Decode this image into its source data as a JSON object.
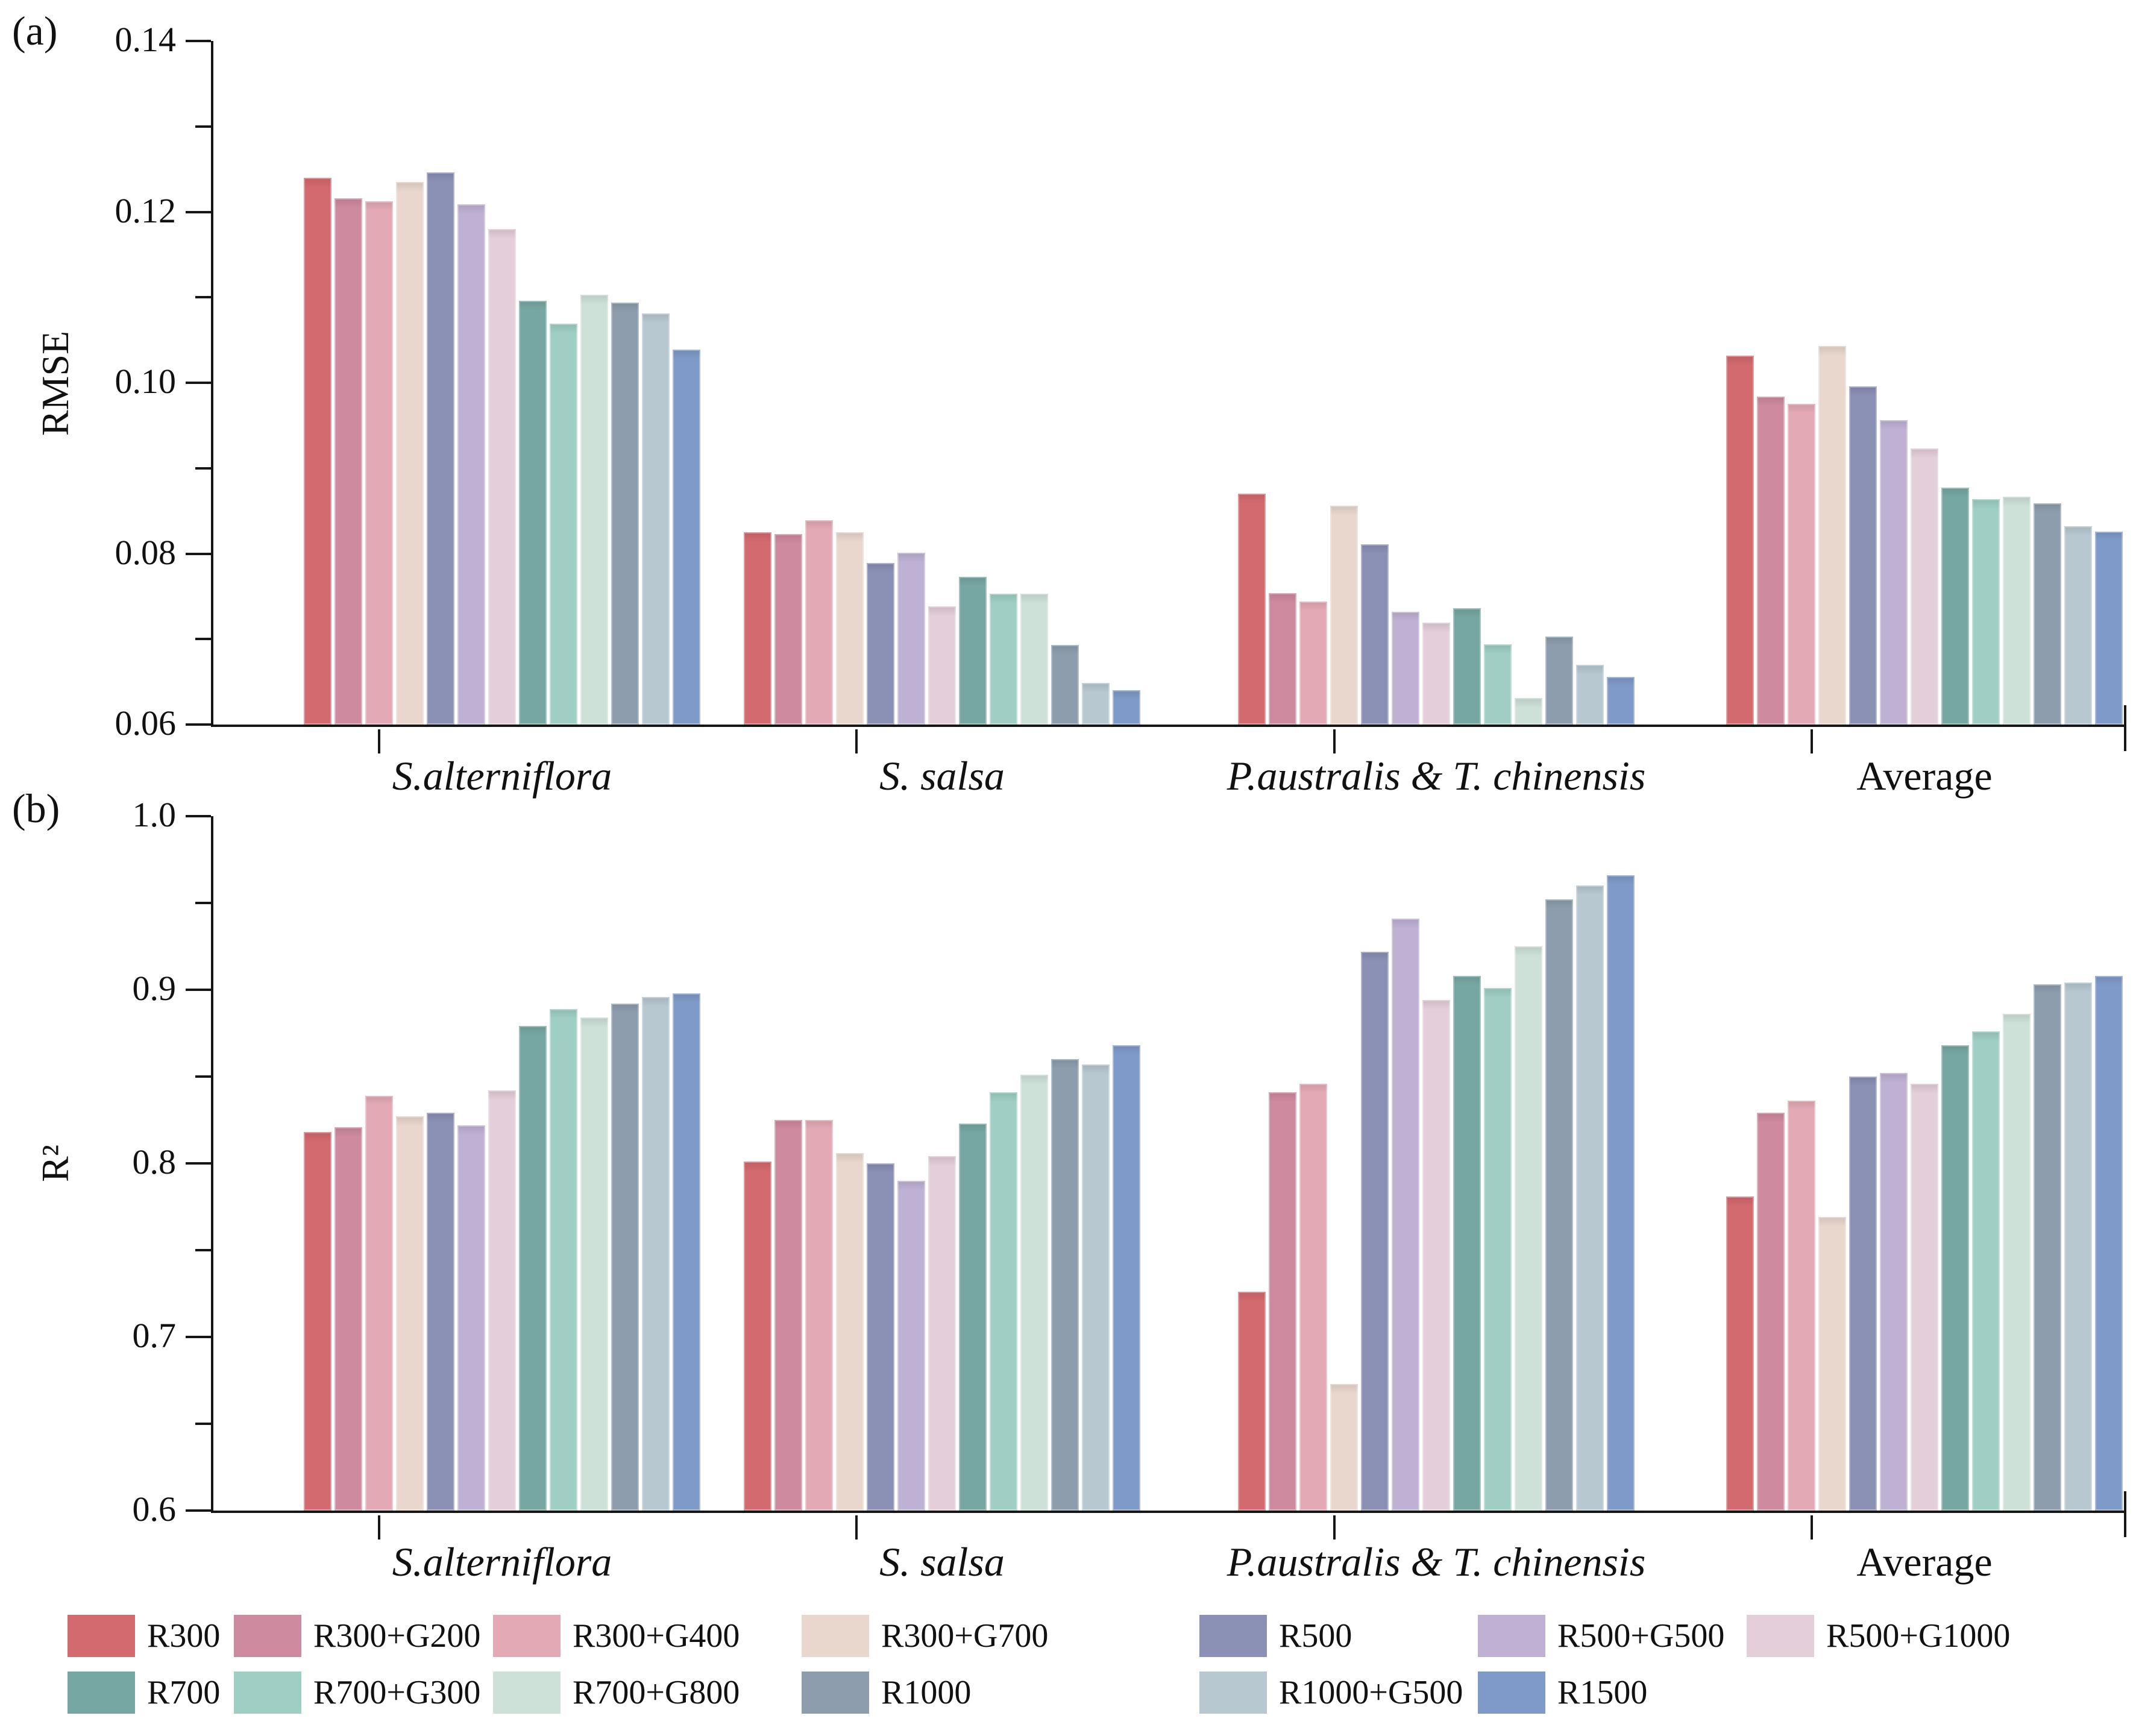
{
  "figure": {
    "panel_a_label": "(a)",
    "panel_b_label": "(b)"
  },
  "chart_data": [
    {
      "type": "bar",
      "panel_label": "(a)",
      "title": "",
      "xlabel": "",
      "ylabel": "RMSE",
      "ylim": [
        0.06,
        0.14
      ],
      "yticks": [
        0.14,
        0.12,
        0.1,
        0.08,
        0.06
      ],
      "ytick_labels": [
        "0.14",
        "0.12",
        "0.10",
        "0.08",
        "0.06"
      ],
      "minor_ticks": [
        0.13,
        0.11,
        0.09,
        0.07
      ],
      "grid": false,
      "legend_position": "bottom",
      "categories": [
        "S.alterniflora",
        "S. salsa",
        "P.australis & T. chinensis",
        "Average"
      ],
      "italic_categories": [
        true,
        true,
        true,
        false
      ],
      "series": [
        {
          "name": "R300",
          "color": "#d26a6f",
          "values": [
            0.124,
            0.0825,
            0.087,
            0.1032
          ]
        },
        {
          "name": "R300+G200",
          "color": "#ce8a9e",
          "values": [
            0.1216,
            0.0823,
            0.0754,
            0.0984
          ]
        },
        {
          "name": "R300+G400",
          "color": "#e3aab5",
          "values": [
            0.1212,
            0.0839,
            0.0744,
            0.0975
          ]
        },
        {
          "name": "R300+G700",
          "color": "#e9d7cd",
          "values": [
            0.1235,
            0.0825,
            0.0856,
            0.1043
          ]
        },
        {
          "name": "R500",
          "color": "#8b90b5",
          "values": [
            0.1246,
            0.0789,
            0.0811,
            0.0996
          ]
        },
        {
          "name": "R500+G500",
          "color": "#bfb1d3",
          "values": [
            0.1209,
            0.0801,
            0.0732,
            0.0956
          ]
        },
        {
          "name": "R500+G1000",
          "color": "#e4ced9",
          "values": [
            0.118,
            0.0738,
            0.0719,
            0.0923
          ]
        },
        {
          "name": "R700",
          "color": "#77a7a2",
          "values": [
            0.1096,
            0.0773,
            0.0736,
            0.0877
          ]
        },
        {
          "name": "R700+G300",
          "color": "#9ecec4",
          "values": [
            0.1069,
            0.0753,
            0.0694,
            0.0864
          ]
        },
        {
          "name": "R700+G800",
          "color": "#cde1d8",
          "values": [
            0.1103,
            0.0753,
            0.0631,
            0.0867
          ]
        },
        {
          "name": "R1000",
          "color": "#8d9dad",
          "values": [
            0.1094,
            0.0693,
            0.0703,
            0.0859
          ]
        },
        {
          "name": "R1000+G500",
          "color": "#b7c8d1",
          "values": [
            0.1081,
            0.0649,
            0.067,
            0.0832
          ]
        },
        {
          "name": "R1500",
          "color": "#7f9ac8",
          "values": [
            0.1039,
            0.064,
            0.0656,
            0.0826
          ]
        }
      ]
    },
    {
      "type": "bar",
      "panel_label": "(b)",
      "title": "",
      "xlabel": "",
      "ylabel": "R²",
      "ylim": [
        0.6,
        1.0
      ],
      "yticks": [
        1.0,
        0.9,
        0.8,
        0.7,
        0.6
      ],
      "ytick_labels": [
        "1.0",
        "0.9",
        "0.8",
        "0.7",
        "0.6"
      ],
      "minor_ticks": [
        0.95,
        0.85,
        0.75,
        0.65
      ],
      "grid": false,
      "legend_position": "bottom",
      "categories": [
        "S.alterniflora",
        "S. salsa",
        "P.australis & T. chinensis",
        "Average"
      ],
      "italic_categories": [
        true,
        true,
        true,
        false
      ],
      "series": [
        {
          "name": "R300",
          "color": "#d26a6f",
          "values": [
            0.818,
            0.801,
            0.726,
            0.781
          ]
        },
        {
          "name": "R300+G200",
          "color": "#ce8a9e",
          "values": [
            0.821,
            0.825,
            0.841,
            0.829
          ]
        },
        {
          "name": "R300+G400",
          "color": "#e3aab5",
          "values": [
            0.839,
            0.825,
            0.846,
            0.836
          ]
        },
        {
          "name": "R300+G700",
          "color": "#e9d7cd",
          "values": [
            0.827,
            0.806,
            0.673,
            0.769
          ]
        },
        {
          "name": "R500",
          "color": "#8b90b5",
          "values": [
            0.829,
            0.8,
            0.922,
            0.85
          ]
        },
        {
          "name": "R500+G500",
          "color": "#bfb1d3",
          "values": [
            0.822,
            0.79,
            0.941,
            0.852
          ]
        },
        {
          "name": "R500+G1000",
          "color": "#e4ced9",
          "values": [
            0.842,
            0.804,
            0.894,
            0.846
          ]
        },
        {
          "name": "R700",
          "color": "#77a7a2",
          "values": [
            0.879,
            0.823,
            0.908,
            0.868
          ]
        },
        {
          "name": "R700+G300",
          "color": "#9ecec4",
          "values": [
            0.889,
            0.841,
            0.901,
            0.876
          ]
        },
        {
          "name": "R700+G800",
          "color": "#cde1d8",
          "values": [
            0.884,
            0.851,
            0.925,
            0.886
          ]
        },
        {
          "name": "R1000",
          "color": "#8d9dad",
          "values": [
            0.892,
            0.86,
            0.952,
            0.903
          ]
        },
        {
          "name": "R1000+G500",
          "color": "#b7c8d1",
          "values": [
            0.896,
            0.857,
            0.96,
            0.904
          ]
        },
        {
          "name": "R1500",
          "color": "#7f9ac8",
          "values": [
            0.898,
            0.868,
            0.966,
            0.908
          ]
        }
      ]
    }
  ],
  "legend": {
    "row_break": 7
  }
}
